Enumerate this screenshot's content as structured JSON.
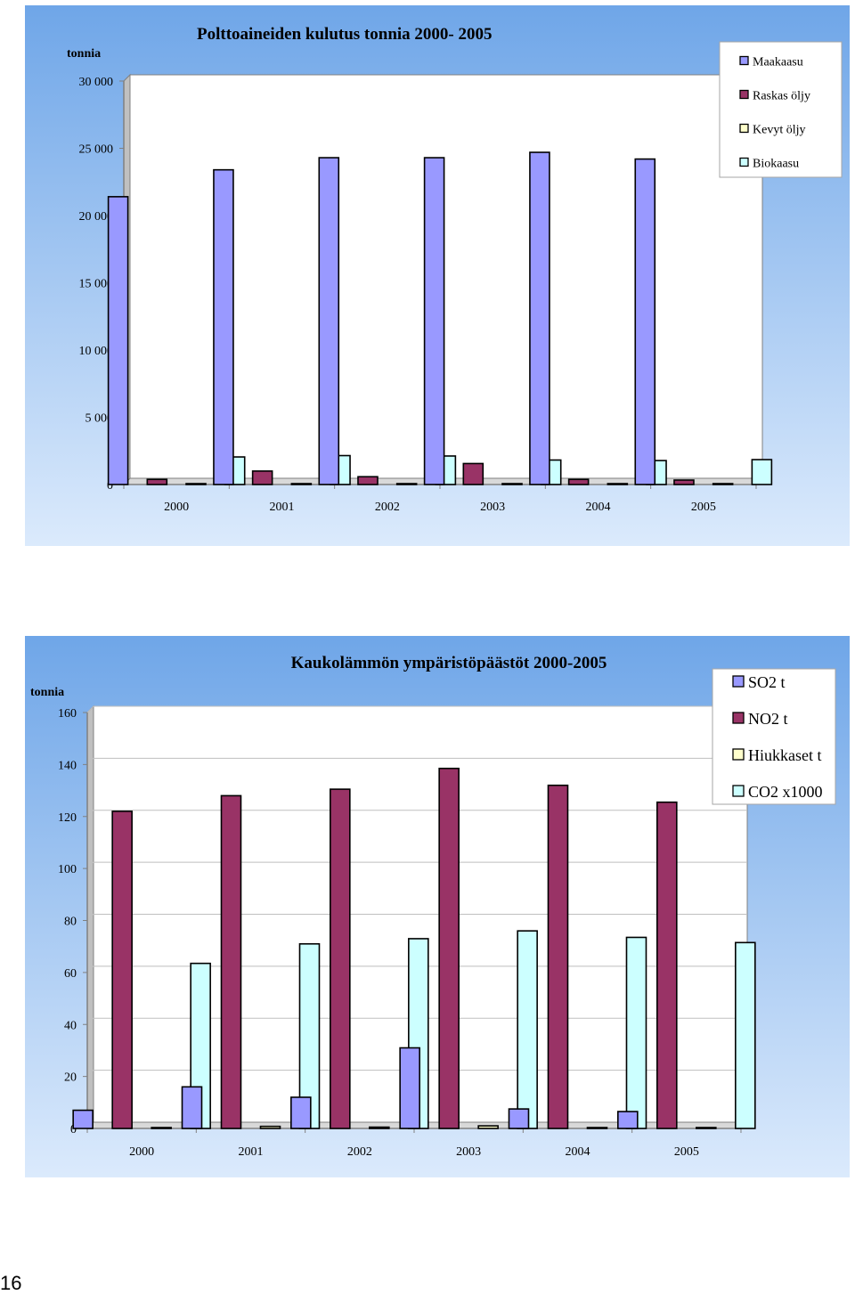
{
  "page": {
    "number": "16"
  },
  "colors": {
    "bg_top": "#6fa6e8",
    "bg_bottom": "#dbeafc",
    "plot_bg": "#ffffff",
    "grid": "#bfbfbf",
    "axis": "#808080"
  },
  "chart_data": [
    {
      "type": "bar",
      "title": "Polttoaineiden kulutus tonnia  2000- 2005",
      "ylabel": "tonnia",
      "xlabel": "",
      "categories": [
        "2000",
        "2001",
        "2002",
        "2003",
        "2004",
        "2005"
      ],
      "ylim": [
        0,
        30000
      ],
      "yticks": [
        0,
        5000,
        10000,
        15000,
        20000,
        25000,
        30000
      ],
      "ytick_labels": [
        "0",
        "5 000",
        "10 000",
        "15 000",
        "20 000",
        "25 000",
        "30 000"
      ],
      "grid": false,
      "legend_position": "top-right",
      "series": [
        {
          "name": "Maakaasu",
          "color": "#9999ff",
          "values": [
            21400,
            23400,
            24300,
            24300,
            24700,
            24200
          ]
        },
        {
          "name": "Raskas öljy",
          "color": "#993366",
          "values": [
            380,
            1000,
            580,
            1560,
            380,
            330
          ]
        },
        {
          "name": "Kevyt öljy",
          "color": "#ffffcc",
          "values": [
            20,
            20,
            20,
            20,
            20,
            20
          ]
        },
        {
          "name": "Biokaasu",
          "color": "#ccffff",
          "values": [
            2050,
            2150,
            2120,
            1820,
            1780,
            1850
          ]
        }
      ]
    },
    {
      "type": "bar",
      "title": "Kaukolämmön ympäristöpäästöt 2000-2005",
      "ylabel": "tonnia",
      "xlabel": "",
      "categories": [
        "2000",
        "2001",
        "2002",
        "2003",
        "2004",
        "2005"
      ],
      "ylim": [
        0,
        160
      ],
      "yticks": [
        0,
        20,
        40,
        60,
        80,
        100,
        120,
        140,
        160
      ],
      "ytick_labels": [
        "0",
        "20",
        "40",
        "60",
        "80",
        "100",
        "120",
        "140",
        "160"
      ],
      "grid": true,
      "legend_position": "top-right",
      "series": [
        {
          "name": "SO2  t",
          "color": "#9999ff",
          "values": [
            7,
            16,
            12,
            31,
            7.5,
            6.5
          ]
        },
        {
          "name": "NO2  t",
          "color": "#993366",
          "values": [
            122,
            128,
            130.5,
            138.5,
            132,
            125.5
          ]
        },
        {
          "name": "Hiukkaset  t",
          "color": "#ffffcc",
          "values": [
            0.3,
            0.8,
            0.5,
            1,
            0.3,
            0.3
          ]
        },
        {
          "name": "CO2  x1000",
          "color": "#ccffff",
          "values": [
            63.5,
            71,
            73,
            76,
            73.5,
            71.5
          ]
        }
      ]
    }
  ]
}
